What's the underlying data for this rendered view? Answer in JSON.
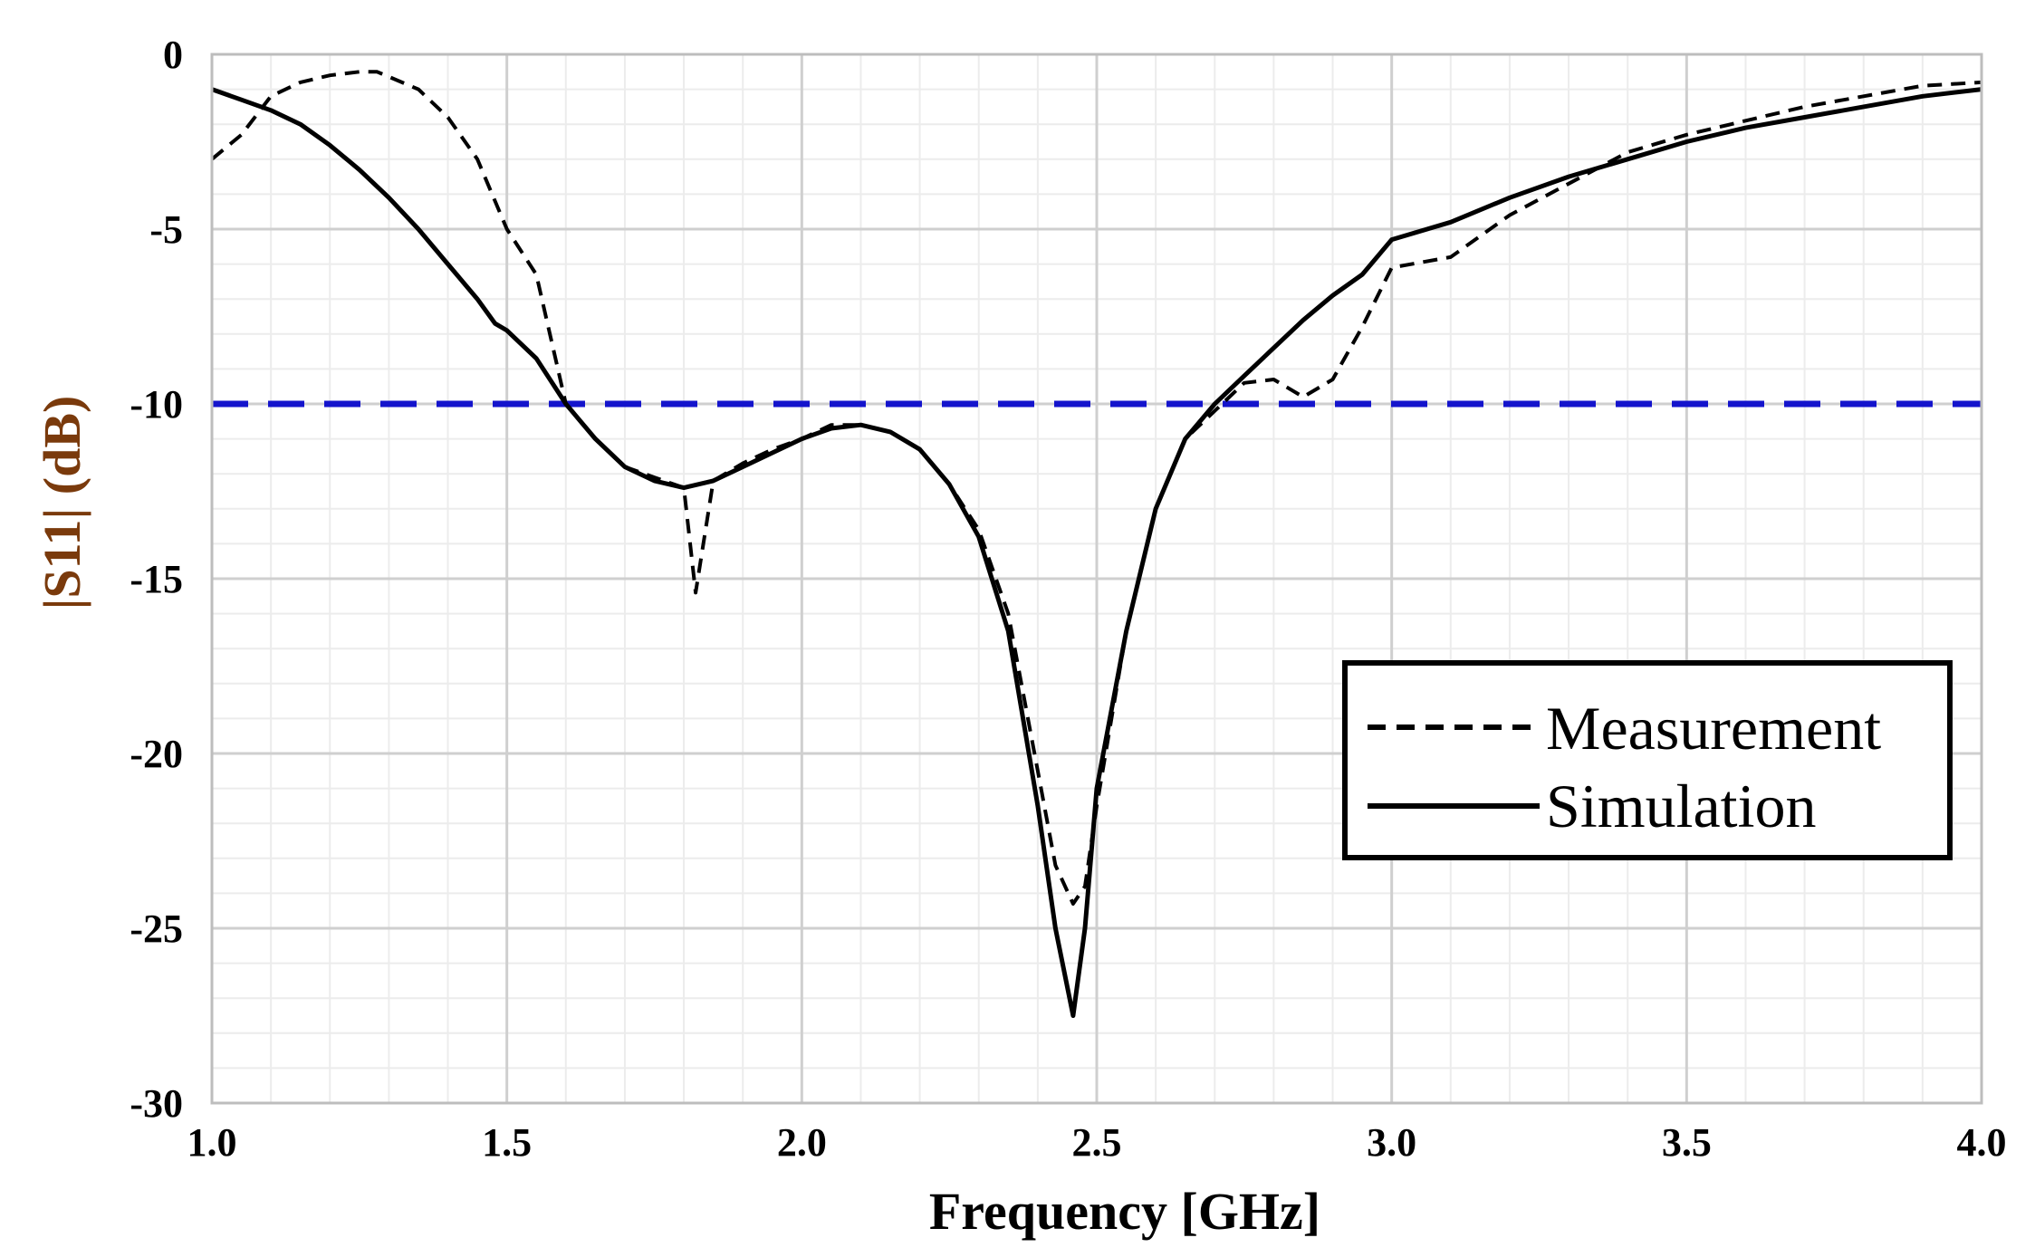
{
  "chart_data": {
    "type": "line",
    "xlabel": "Frequency [GHz]",
    "ylabel": "|S11| (dB)",
    "xlim": [
      1.0,
      4.0
    ],
    "ylim": [
      -30,
      0
    ],
    "x_ticks": [
      "1.0",
      "1.5",
      "2.0",
      "2.5",
      "3.0",
      "3.5",
      "4.0"
    ],
    "y_ticks": [
      "0",
      "-5",
      "-10",
      "-15",
      "-20",
      "-25",
      "-30"
    ],
    "grid": true,
    "reference_line": {
      "y": -10,
      "color": "#1414cc",
      "style": "dashed"
    },
    "legend": {
      "placement": "center-right",
      "entries": [
        "Measurement",
        "Simulation"
      ]
    },
    "series": [
      {
        "name": "Measurement",
        "style": "dashed",
        "color": "#000000",
        "x": [
          1.0,
          1.05,
          1.1,
          1.15,
          1.2,
          1.25,
          1.28,
          1.35,
          1.4,
          1.45,
          1.5,
          1.55,
          1.6,
          1.65,
          1.7,
          1.75,
          1.8,
          1.82,
          1.85,
          1.9,
          1.95,
          2.0,
          2.05,
          2.1,
          2.15,
          2.2,
          2.25,
          2.3,
          2.35,
          2.4,
          2.43,
          2.46,
          2.48,
          2.5,
          2.55,
          2.6,
          2.65,
          2.7,
          2.75,
          2.8,
          2.85,
          2.9,
          2.95,
          3.0,
          3.1,
          3.2,
          3.3,
          3.4,
          3.5,
          3.6,
          3.7,
          3.8,
          3.9,
          4.0
        ],
        "y": [
          -3.0,
          -2.3,
          -1.2,
          -0.8,
          -0.6,
          -0.5,
          -0.5,
          -1.0,
          -1.8,
          -3.0,
          -5.0,
          -6.3,
          -10.0,
          -11.0,
          -11.8,
          -12.1,
          -12.4,
          -15.4,
          -12.2,
          -11.7,
          -11.3,
          -11.0,
          -10.6,
          -10.6,
          -10.8,
          -11.3,
          -12.3,
          -13.6,
          -16.0,
          -20.5,
          -23.2,
          -24.3,
          -23.8,
          -21.5,
          -16.5,
          -13.0,
          -11.0,
          -10.2,
          -9.4,
          -9.3,
          -9.8,
          -9.3,
          -7.8,
          -6.1,
          -5.8,
          -4.6,
          -3.7,
          -2.8,
          -2.3,
          -1.9,
          -1.5,
          -1.2,
          -0.9,
          -0.8
        ]
      },
      {
        "name": "Simulation",
        "style": "solid",
        "color": "#000000",
        "x": [
          1.0,
          1.05,
          1.1,
          1.15,
          1.2,
          1.25,
          1.3,
          1.35,
          1.4,
          1.45,
          1.48,
          1.5,
          1.55,
          1.6,
          1.65,
          1.7,
          1.75,
          1.8,
          1.85,
          1.9,
          1.95,
          2.0,
          2.05,
          2.1,
          2.15,
          2.2,
          2.25,
          2.3,
          2.35,
          2.4,
          2.43,
          2.46,
          2.48,
          2.5,
          2.55,
          2.6,
          2.65,
          2.7,
          2.75,
          2.8,
          2.85,
          2.9,
          2.95,
          3.0,
          3.1,
          3.2,
          3.3,
          3.4,
          3.5,
          3.6,
          3.7,
          3.8,
          3.9,
          4.0
        ],
        "y": [
          -1.0,
          -1.3,
          -1.6,
          -2.0,
          -2.6,
          -3.3,
          -4.1,
          -5.0,
          -6.0,
          -7.0,
          -7.7,
          -7.9,
          -8.7,
          -10.0,
          -11.0,
          -11.8,
          -12.2,
          -12.4,
          -12.2,
          -11.8,
          -11.4,
          -11.0,
          -10.7,
          -10.6,
          -10.8,
          -11.3,
          -12.3,
          -13.8,
          -16.5,
          -21.5,
          -25.0,
          -27.5,
          -25.0,
          -21.0,
          -16.5,
          -13.0,
          -11.0,
          -10.0,
          -9.2,
          -8.4,
          -7.6,
          -6.9,
          -6.3,
          -5.3,
          -4.8,
          -4.1,
          -3.5,
          -3.0,
          -2.5,
          -2.1,
          -1.8,
          -1.5,
          -1.2,
          -1.0
        ]
      }
    ]
  }
}
